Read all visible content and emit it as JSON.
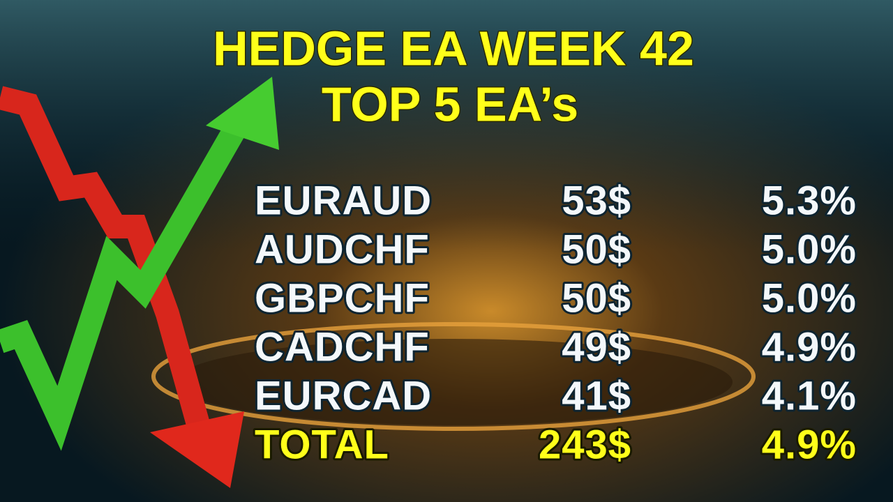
{
  "title": [
    "HEDGE EA WEEK 42",
    "TOP 5 EA’s"
  ],
  "table": {
    "rows": [
      [
        "EURAUD",
        "53$",
        "5.3%"
      ],
      [
        "AUDCHF",
        "50$",
        "5.0%"
      ],
      [
        "GBPCHF",
        "50$",
        "5.0%"
      ],
      [
        "CADCHF",
        "49$",
        "4.9%"
      ],
      [
        "EURCAD",
        "41$",
        "4.1%"
      ]
    ],
    "total": [
      "TOTAL",
      "243$",
      "4.9%"
    ]
  }
}
